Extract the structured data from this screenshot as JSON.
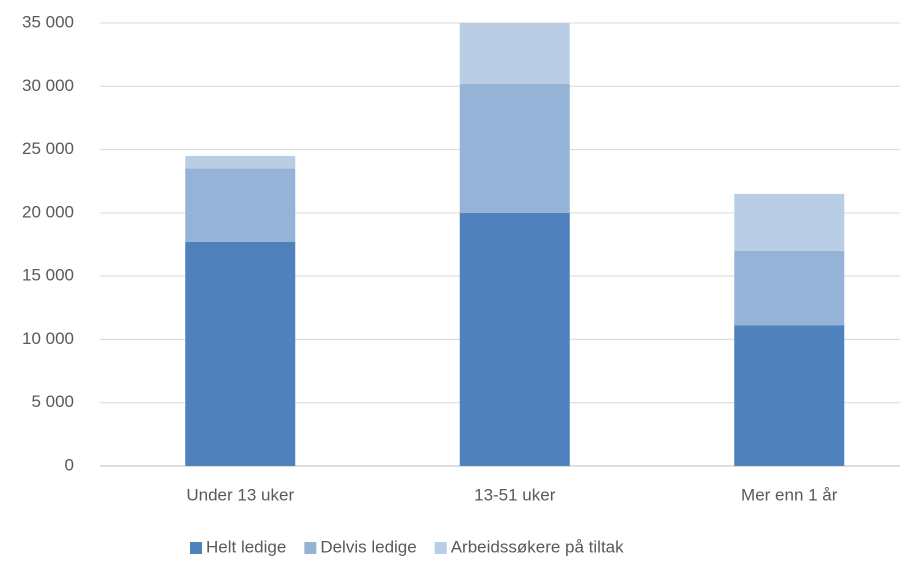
{
  "chart_data": {
    "type": "stacked_bar",
    "categories": [
      "Under 13 uker",
      "13-51 uker",
      "Mer enn 1 år"
    ],
    "series": [
      {
        "name": "Helt ledige",
        "color": "#4f81bd",
        "values": [
          17700,
          20000,
          11100
        ]
      },
      {
        "name": "Delvis ledige",
        "color": "#95b3d7",
        "values": [
          5800,
          10200,
          5900
        ]
      },
      {
        "name": "Arbeidssøkere på tiltak",
        "color": "#b9cde5",
        "values": [
          1000,
          4800,
          4500
        ]
      }
    ],
    "ylim": [
      0,
      35000
    ],
    "yticks": [
      0,
      {
        "value": 5000,
        "label": "5 000"
      },
      {
        "value": 10000,
        "label": "10 000"
      },
      {
        "value": 15000,
        "label": "15 000"
      },
      {
        "value": 20000,
        "label": "20 000"
      },
      {
        "value": 25000,
        "label": "25 000"
      },
      {
        "value": 30000,
        "label": "30 000"
      },
      {
        "value": 35000,
        "label": "35 000"
      }
    ],
    "grid": true,
    "legend": "bottom"
  }
}
